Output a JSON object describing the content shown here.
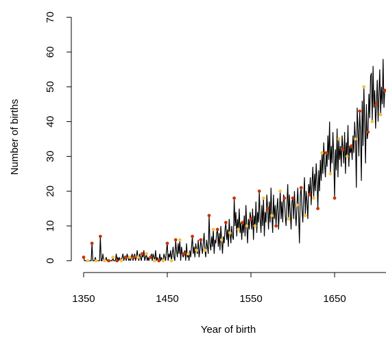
{
  "chart_data": {
    "type": "line",
    "x_label": "Year of birth",
    "y_label": "Number of births",
    "xlim": [
      1335.6,
      1724.4
    ],
    "ylim": [
      -2.8,
      72.8
    ],
    "xticks": [
      1350,
      1450,
      1550,
      1650
    ],
    "yticks": [
      0,
      10,
      20,
      30,
      40,
      50,
      60,
      70
    ],
    "series": [
      {
        "color": "#000000",
        "x": [
          1350,
          1351,
          1352,
          1353,
          1354,
          1355,
          1356,
          1357,
          1358,
          1359,
          1360,
          1361,
          1362,
          1363,
          1364,
          1365,
          1366,
          1367,
          1368,
          1369,
          1370,
          1371,
          1372,
          1373,
          1374,
          1375,
          1376,
          1377,
          1378,
          1379,
          1380,
          1381,
          1382,
          1383,
          1384,
          1385,
          1386,
          1387,
          1388,
          1389,
          1390,
          1391,
          1392,
          1393,
          1394,
          1395,
          1396,
          1397,
          1398,
          1399,
          1400,
          1401,
          1402,
          1403,
          1404,
          1405,
          1406,
          1407,
          1408,
          1409,
          1410,
          1411,
          1412,
          1413,
          1414,
          1415,
          1416,
          1417,
          1418,
          1419,
          1420,
          1421,
          1422,
          1423,
          1424,
          1425,
          1426,
          1427,
          1428,
          1429,
          1430,
          1431,
          1432,
          1433,
          1434,
          1435,
          1436,
          1437,
          1438,
          1439,
          1440,
          1441,
          1442,
          1443,
          1444,
          1445,
          1446,
          1447,
          1448,
          1449,
          1450,
          1451,
          1452,
          1453,
          1454,
          1455,
          1456,
          1457,
          1458,
          1459,
          1460,
          1461,
          1462,
          1463,
          1464,
          1465,
          1466,
          1467,
          1468,
          1469,
          1470,
          1471,
          1472,
          1473,
          1474,
          1475,
          1476,
          1477,
          1478,
          1479,
          1480,
          1481,
          1482,
          1483,
          1484,
          1485,
          1486,
          1487,
          1488,
          1489,
          1490,
          1491,
          1492,
          1493,
          1494,
          1495,
          1496,
          1497,
          1498,
          1499,
          1500,
          1501,
          1502,
          1503,
          1504,
          1505,
          1506,
          1507,
          1508,
          1509,
          1510,
          1511,
          1512,
          1513,
          1514,
          1515,
          1516,
          1517,
          1518,
          1519,
          1520,
          1521,
          1522,
          1523,
          1524,
          1525,
          1526,
          1527,
          1528,
          1529,
          1530,
          1531,
          1532,
          1533,
          1534,
          1535,
          1536,
          1537,
          1538,
          1539,
          1540,
          1541,
          1542,
          1543,
          1544,
          1545,
          1546,
          1547,
          1548,
          1549,
          1550,
          1551,
          1552,
          1553,
          1554,
          1555,
          1556,
          1557,
          1558,
          1559,
          1560,
          1561,
          1562,
          1563,
          1564,
          1565,
          1566,
          1567,
          1568,
          1569,
          1570,
          1571,
          1572,
          1573,
          1574,
          1575,
          1576,
          1577,
          1578,
          1579,
          1580,
          1581,
          1582,
          1583,
          1584,
          1585,
          1586,
          1587,
          1588,
          1589,
          1590,
          1591,
          1592,
          1593,
          1594,
          1595,
          1596,
          1597,
          1598,
          1599,
          1600,
          1601,
          1602,
          1603,
          1604,
          1605,
          1606,
          1607,
          1608,
          1609,
          1610,
          1611,
          1612,
          1613,
          1614,
          1615,
          1616,
          1617,
          1618,
          1619,
          1620,
          1621,
          1622,
          1623,
          1624,
          1625,
          1626,
          1627,
          1628,
          1629,
          1630,
          1631,
          1632,
          1633,
          1634,
          1635,
          1636,
          1637,
          1638,
          1639,
          1640,
          1641,
          1642,
          1643,
          1644,
          1645,
          1646,
          1647,
          1648,
          1649,
          1650,
          1651,
          1652,
          1653,
          1654,
          1655,
          1656,
          1657,
          1658,
          1659,
          1660,
          1661,
          1662,
          1663,
          1664,
          1665,
          1666,
          1667,
          1668,
          1669,
          1670,
          1671,
          1672,
          1673,
          1674,
          1675,
          1676,
          1677,
          1678,
          1679,
          1680,
          1681,
          1682,
          1683,
          1684,
          1685,
          1686,
          1687,
          1688,
          1689,
          1690,
          1691,
          1692,
          1693,
          1694,
          1695,
          1696,
          1697,
          1698,
          1699,
          1700,
          1701,
          1702,
          1703,
          1704,
          1705,
          1706,
          1707,
          1708,
          1709,
          1710
        ],
        "values": [
          1,
          0,
          0,
          0,
          0,
          0,
          0,
          0,
          0,
          0,
          5,
          0,
          0,
          0,
          1,
          0,
          0,
          0,
          0,
          0,
          7,
          0,
          0,
          2,
          0,
          0,
          0,
          1,
          0,
          0,
          0,
          0,
          0,
          0,
          0,
          1,
          0,
          0,
          0,
          2,
          0,
          1,
          0,
          1,
          0,
          0,
          1,
          2,
          0,
          1,
          1,
          0,
          2,
          1,
          0,
          1,
          0,
          1,
          2,
          0,
          1,
          2,
          0,
          1,
          3,
          1,
          0,
          2,
          1,
          0,
          2,
          1,
          3,
          0,
          1,
          2,
          0,
          1,
          0,
          1,
          1,
          2,
          0,
          2,
          1,
          0,
          3,
          0,
          1,
          0,
          0,
          2,
          0,
          1,
          0,
          0,
          2,
          1,
          0,
          3,
          5,
          0,
          2,
          1,
          3,
          0,
          2,
          4,
          1,
          0,
          6,
          3,
          1,
          5,
          2,
          6,
          0,
          4,
          2,
          1,
          2,
          3,
          0,
          5,
          1,
          2,
          0,
          3,
          1,
          4,
          7,
          2,
          4,
          1,
          5,
          3,
          2,
          6,
          1,
          3,
          6,
          4,
          2,
          5,
          8,
          3,
          1,
          6,
          4,
          2,
          13,
          5,
          3,
          7,
          4,
          9,
          2,
          6,
          5,
          8,
          9,
          4,
          8,
          3,
          10,
          6,
          2,
          7,
          5,
          9,
          11,
          6,
          9,
          4,
          12,
          8,
          5,
          10,
          7,
          6,
          18,
          10,
          14,
          7,
          12,
          9,
          15,
          8,
          11,
          6,
          11,
          8,
          13,
          7,
          16,
          10,
          5,
          12,
          9,
          14,
          12,
          9,
          15,
          6,
          13,
          10,
          17,
          8,
          14,
          11,
          20,
          12,
          8,
          16,
          10,
          18,
          7,
          14,
          11,
          19,
          15,
          9,
          17,
          11,
          21,
          13,
          8,
          19,
          12,
          16,
          10,
          15,
          18,
          9,
          14,
          20,
          12,
          17,
          11,
          19,
          18,
          13,
          10,
          16,
          22,
          12,
          19,
          14,
          9,
          17,
          18,
          12,
          20,
          14,
          10,
          16,
          21,
          13,
          5,
          19,
          21,
          15,
          11,
          18,
          24,
          13,
          20,
          17,
          12,
          22,
          19,
          24,
          16,
          22,
          27,
          18,
          25,
          20,
          28,
          23,
          15,
          26,
          20,
          29,
          23,
          31,
          25,
          34,
          28,
          24,
          31,
          27,
          36,
          29,
          40,
          25,
          33,
          28,
          37,
          30,
          18,
          32,
          26,
          38,
          24,
          35,
          29,
          33,
          27,
          36,
          32,
          28,
          37,
          25,
          34,
          30,
          39,
          27,
          33,
          31,
          33,
          29,
          36,
          31,
          40,
          35,
          21,
          44,
          38,
          30,
          43,
          37,
          23,
          46,
          33,
          50,
          39,
          28,
          45,
          35,
          37,
          48,
          41,
          53,
          54,
          40,
          56,
          44,
          49,
          38,
          45,
          52,
          40,
          48,
          55,
          42,
          50,
          45,
          58,
          44,
          49
        ]
      },
      {
        "type": "scatter",
        "color": "#cc3300",
        "x": [
          1350,
          1360,
          1370,
          1380,
          1390,
          1400,
          1410,
          1420,
          1430,
          1440,
          1450,
          1460,
          1470,
          1480,
          1490,
          1500,
          1510,
          1520,
          1530,
          1540,
          1550,
          1560,
          1570,
          1580,
          1590,
          1600,
          1610,
          1620,
          1630,
          1640,
          1650,
          1660,
          1670,
          1680,
          1690,
          1700,
          1710
        ],
        "values": [
          1,
          5,
          7,
          0,
          0,
          1,
          1,
          2,
          1,
          0,
          5,
          6,
          2,
          7,
          6,
          13,
          9,
          11,
          18,
          11,
          12,
          20,
          15,
          10,
          18,
          18,
          21,
          19,
          15,
          31,
          18,
          32,
          33,
          43,
          37,
          45,
          49
        ]
      },
      {
        "type": "scatter",
        "color": "#f5c04a",
        "x": [
          1355,
          1365,
          1375,
          1385,
          1395,
          1405,
          1415,
          1425,
          1435,
          1445,
          1455,
          1465,
          1475,
          1485,
          1495,
          1505,
          1515,
          1525,
          1535,
          1545,
          1555,
          1565,
          1575,
          1585,
          1595,
          1605,
          1615,
          1625,
          1635,
          1645,
          1655,
          1665,
          1675,
          1685,
          1695,
          1705
        ],
        "values": [
          0,
          0,
          0,
          1,
          0,
          1,
          1,
          2,
          0,
          0,
          0,
          6,
          2,
          3,
          3,
          9,
          6,
          8,
          9,
          10,
          10,
          18,
          13,
          20,
          12,
          16,
          13,
          18,
          31,
          25,
          35,
          30,
          35,
          50,
          40,
          42
        ]
      }
    ]
  }
}
